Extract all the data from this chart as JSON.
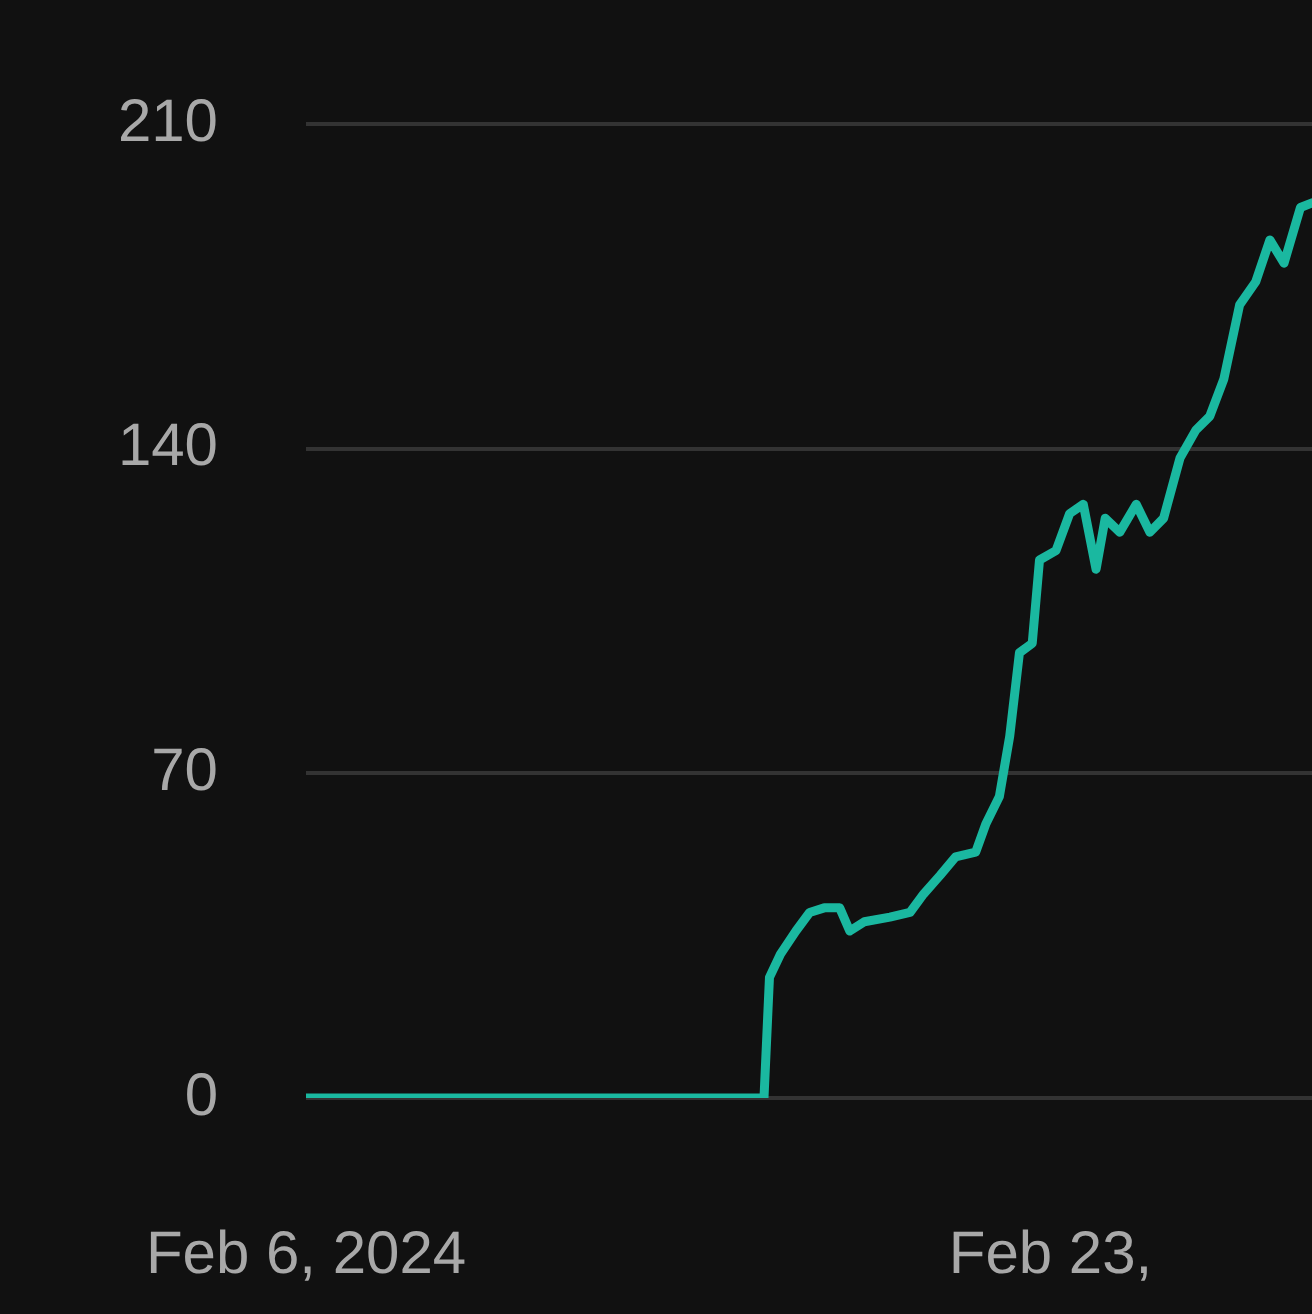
{
  "chart_data": {
    "type": "line",
    "x": [
      "2024-02-06T00:00",
      "2024-02-16T11:00",
      "2024-02-16T14:00",
      "2024-02-16T20:00",
      "2024-02-17T04:30",
      "2024-02-17T12:00",
      "2024-02-17T20:00",
      "2024-02-18T04:30",
      "2024-02-18T10:00",
      "2024-02-18T18:00",
      "2024-02-19T08:00",
      "2024-02-19T19:00",
      "2024-02-20T02:30",
      "2024-02-20T11:30",
      "2024-02-20T20:00",
      "2024-02-21T07:00",
      "2024-02-21T12:30",
      "2024-02-21T20:00",
      "2024-02-22T01:40",
      "2024-02-22T07:00",
      "2024-02-22T14:00",
      "2024-02-22T18:00",
      "2024-02-23T03:00",
      "2024-02-23T10:30",
      "2024-02-23T18:00",
      "2024-02-24T01:00",
      "2024-02-24T06:00",
      "2024-02-24T14:00",
      "2024-02-24T23:00",
      "2024-02-25T06:30",
      "2024-02-25T14:00",
      "2024-02-25T23:00",
      "2024-02-26T07:40",
      "2024-02-26T15:20",
      "2024-02-26T23:00",
      "2024-02-27T07:40",
      "2024-02-27T16:30",
      "2024-02-28T00:15",
      "2024-02-28T08:00",
      "2024-02-28T17:00",
      "2024-02-28T23:20"
    ],
    "series": [
      {
        "color": "#1ab8a0",
        "values": [
          0,
          0,
          26,
          31,
          36,
          40,
          41,
          41,
          36,
          38,
          39,
          40,
          44,
          48,
          52,
          53,
          59,
          65,
          78,
          96,
          98,
          116,
          118,
          126,
          128,
          114,
          125,
          122,
          128,
          122,
          125,
          138,
          144,
          147,
          155,
          171,
          176,
          185,
          180,
          192,
          193
        ]
      }
    ],
    "xlim": [
      "2024-02-06T00:00",
      "2024-02-28T23:20"
    ],
    "xticks": [
      {
        "value": "2024-02-06T00:00",
        "label": "Feb 6, 2024"
      },
      {
        "value": "2024-02-23T00:00",
        "label": "Feb 23,"
      }
    ],
    "ylim": [
      0,
      210
    ],
    "yticks": [
      0,
      70,
      140,
      210
    ],
    "grid": "y",
    "marker": "none",
    "line_style": "solid"
  }
}
